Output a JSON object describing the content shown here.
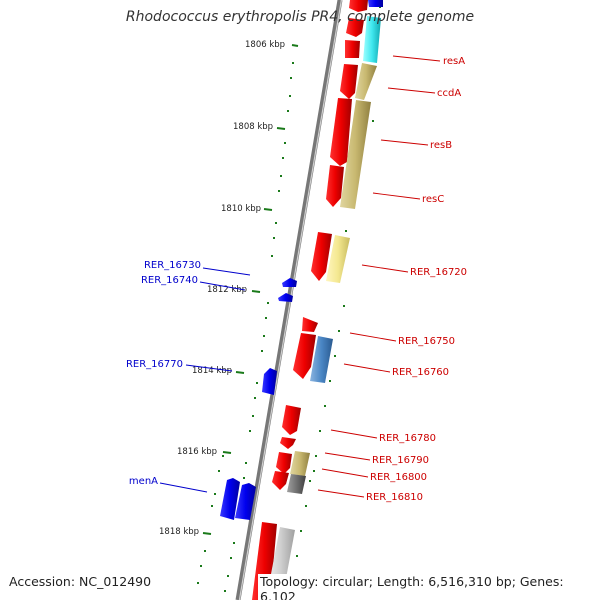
{
  "title": "Rhodococcus erythropolis PR4, complete genome",
  "footer": {
    "accession": "Accession: NC_012490",
    "topology": "Topology: circular; Length: 6,516,310 bp; Genes: 6,102"
  },
  "colors": {
    "forward_cds": "#ee0000",
    "reverse_cds": "#0000ee",
    "label_right": "#cc0000",
    "label_left": "#0000cc",
    "tick": "#1a7a1a",
    "backbone": "#888888"
  },
  "ruler": {
    "labels": [
      {
        "kbp": 1806,
        "text": "1806 kbp"
      },
      {
        "kbp": 1808,
        "text": "1808 kbp"
      },
      {
        "kbp": 1810,
        "text": "1810 kbp"
      },
      {
        "kbp": 1812,
        "text": "1812 kbp"
      },
      {
        "kbp": 1814,
        "text": "1814 kbp"
      },
      {
        "kbp": 1816,
        "text": "1816 kbp"
      },
      {
        "kbp": 1818,
        "text": "1818 kbp"
      }
    ]
  },
  "genes_right": [
    {
      "name": "resA",
      "strand": "forward"
    },
    {
      "name": "ccdA",
      "strand": "forward"
    },
    {
      "name": "resB",
      "strand": "forward"
    },
    {
      "name": "resC",
      "strand": "forward"
    },
    {
      "name": "RER_16720",
      "strand": "forward"
    },
    {
      "name": "RER_16750",
      "strand": "forward"
    },
    {
      "name": "RER_16760",
      "strand": "forward"
    },
    {
      "name": "RER_16780",
      "strand": "forward"
    },
    {
      "name": "RER_16790",
      "strand": "forward"
    },
    {
      "name": "RER_16800",
      "strand": "forward"
    },
    {
      "name": "RER_16810",
      "strand": "forward"
    }
  ],
  "genes_left": [
    {
      "name": "RER_16730",
      "strand": "reverse"
    },
    {
      "name": "RER_16740",
      "strand": "reverse"
    },
    {
      "name": "RER_16770",
      "strand": "reverse"
    },
    {
      "name": "menA",
      "strand": "reverse"
    }
  ]
}
